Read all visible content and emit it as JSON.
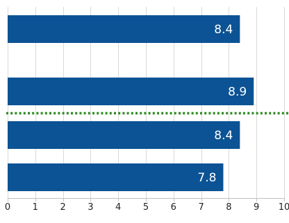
{
  "chart_data": {
    "type": "bar",
    "orientation": "horizontal",
    "categories": [
      "",
      "",
      "",
      ""
    ],
    "values": [
      8.4,
      8.9,
      8.4,
      7.8
    ],
    "data_labels": [
      "8.4",
      "8.9",
      "8.4",
      "7.8"
    ],
    "xlim": [
      0,
      10
    ],
    "xticks": [
      "0",
      "1",
      "2",
      "3",
      "4",
      "5",
      "6",
      "7",
      "8",
      "9",
      "10"
    ],
    "grid": "vertical",
    "title": "",
    "xlabel": "",
    "ylabel": "",
    "bar_color": "#0b5394",
    "reference_line": {
      "position_between_bars": [
        2,
        3
      ],
      "color": "#2e8b22",
      "style": "dotted"
    }
  }
}
